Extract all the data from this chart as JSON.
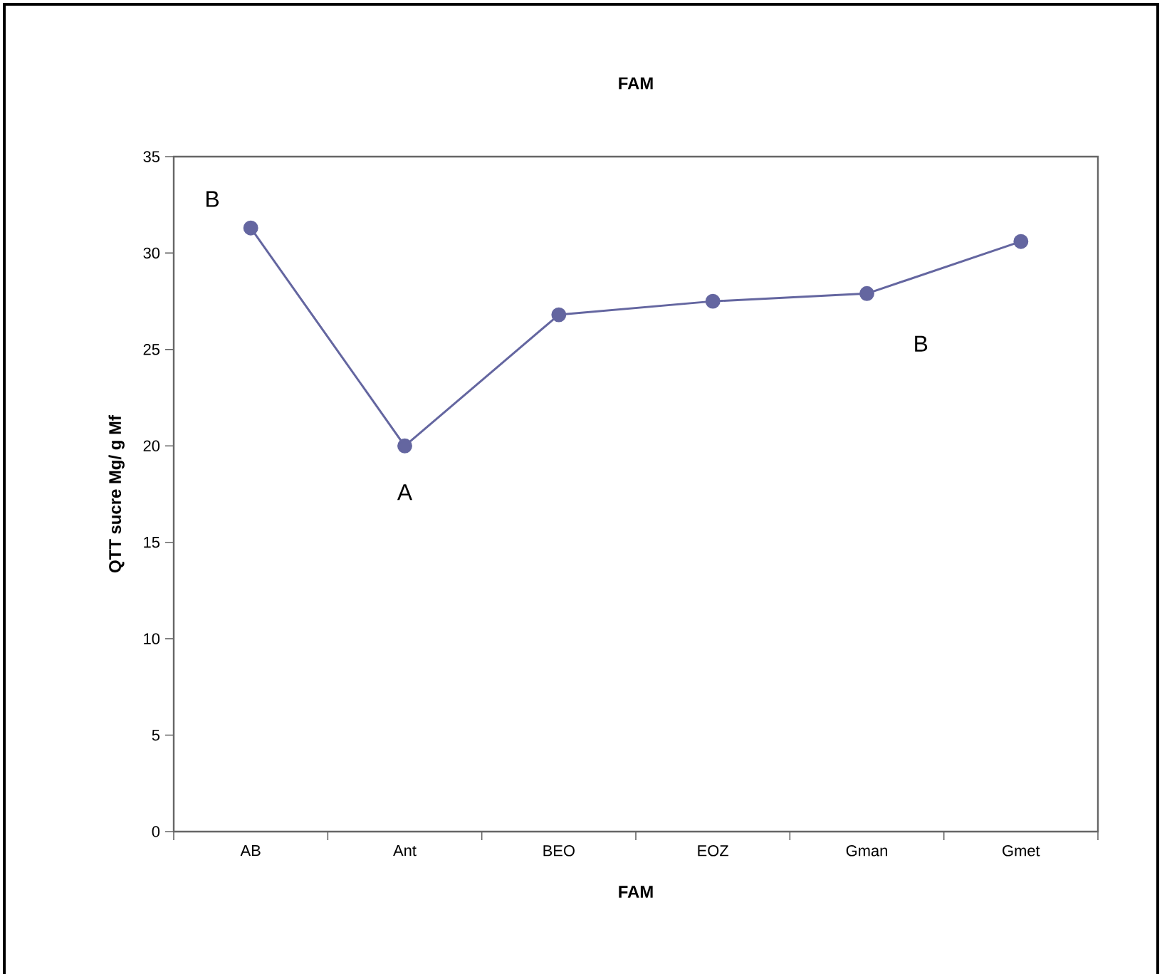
{
  "chart_data": {
    "type": "line",
    "title": "FAM",
    "xlabel": "FAM",
    "ylabel": "QTT sucre Mg/ g Mf",
    "categories": [
      "AB",
      "Ant",
      "BEO",
      "EOZ",
      "Gman",
      "Gmet"
    ],
    "series": [
      {
        "color": "#6466a0",
        "values": [
          31.3,
          20.0,
          26.8,
          27.5,
          27.9,
          30.6
        ]
      }
    ],
    "ylim": [
      0,
      35
    ],
    "yticks": [
      0,
      5,
      10,
      15,
      20,
      25,
      30,
      35
    ],
    "marker": "circle",
    "grid": false,
    "annotations": [
      "B",
      "A",
      "B"
    ]
  }
}
